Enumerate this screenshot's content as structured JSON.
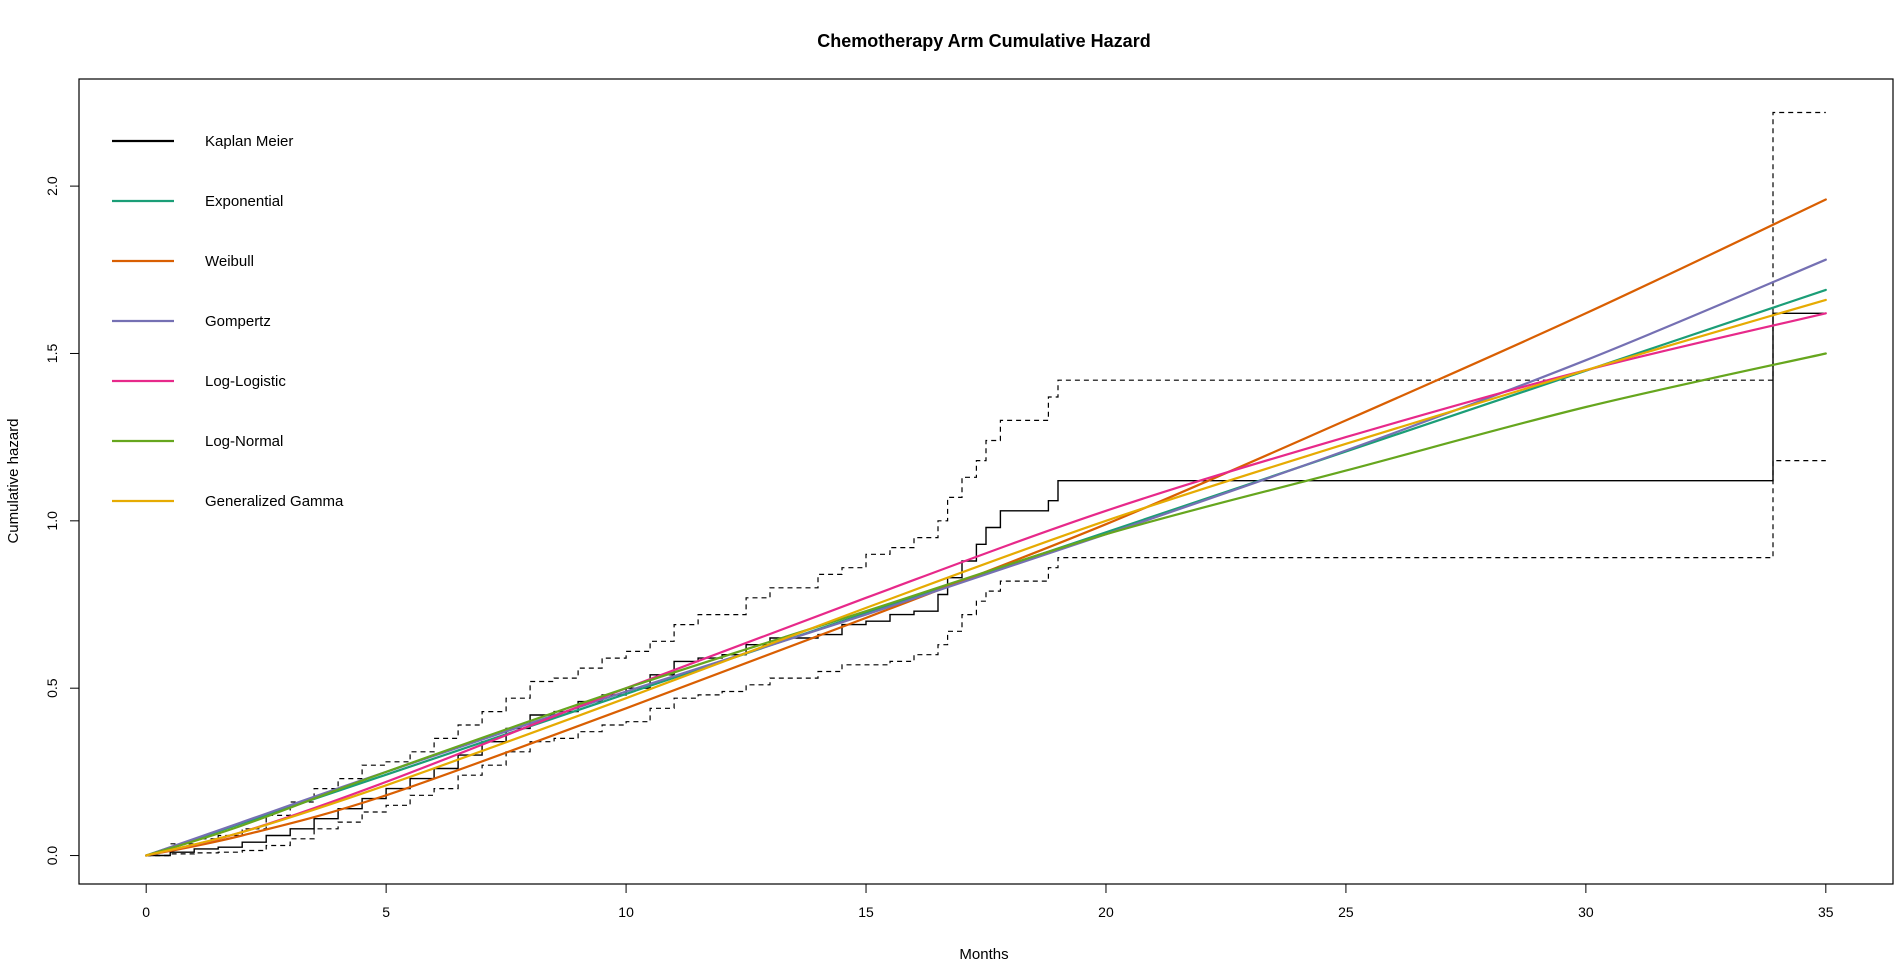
{
  "chart_data": {
    "type": "line",
    "title": "Chemotherapy Arm Cumulative Hazard",
    "xlabel": "Months",
    "ylabel": "Cumulative hazard",
    "xlim": [
      -1.4,
      36.4
    ],
    "ylim": [
      -0.085,
      2.32
    ],
    "xticks": [
      0,
      5,
      10,
      15,
      20,
      25,
      30,
      35
    ],
    "xtick_labels": [
      "0",
      "5",
      "10",
      "15",
      "20",
      "25",
      "30",
      "35"
    ],
    "yticks": [
      0.0,
      0.5,
      1.0,
      1.5,
      2.0
    ],
    "ytick_labels": [
      "0.0",
      "0.5",
      "1.0",
      "1.5",
      "2.0"
    ],
    "grid": false,
    "legend_position": "top-left",
    "legend": [
      {
        "label": "Kaplan Meier",
        "color": "#000000"
      },
      {
        "label": "Exponential",
        "color": "#1B9E77"
      },
      {
        "label": "Weibull",
        "color": "#D95F02"
      },
      {
        "label": "Gompertz",
        "color": "#7570B3"
      },
      {
        "label": "Log-Logistic",
        "color": "#E7298A"
      },
      {
        "label": "Log-Normal",
        "color": "#66A61E"
      },
      {
        "label": "Generalized Gamma",
        "color": "#E6AB02"
      }
    ],
    "kaplan_meier": {
      "estimate": [
        [
          0,
          0
        ],
        [
          0.5,
          0.01
        ],
        [
          1,
          0.02
        ],
        [
          1.5,
          0.025
        ],
        [
          2,
          0.04
        ],
        [
          2.5,
          0.06
        ],
        [
          3,
          0.08
        ],
        [
          3.5,
          0.11
        ],
        [
          4,
          0.14
        ],
        [
          4.5,
          0.17
        ],
        [
          5,
          0.2
        ],
        [
          5.5,
          0.23
        ],
        [
          6,
          0.26
        ],
        [
          6.5,
          0.3
        ],
        [
          7,
          0.34
        ],
        [
          7.5,
          0.38
        ],
        [
          8,
          0.42
        ],
        [
          8.5,
          0.43
        ],
        [
          9,
          0.46
        ],
        [
          9.5,
          0.48
        ],
        [
          10,
          0.5
        ],
        [
          10.5,
          0.54
        ],
        [
          11,
          0.58
        ],
        [
          11.5,
          0.59
        ],
        [
          12,
          0.6
        ],
        [
          12.5,
          0.63
        ],
        [
          13,
          0.65
        ],
        [
          14,
          0.66
        ],
        [
          14.5,
          0.69
        ],
        [
          15,
          0.7
        ],
        [
          15.5,
          0.72
        ],
        [
          16,
          0.73
        ],
        [
          16.5,
          0.78
        ],
        [
          16.7,
          0.83
        ],
        [
          17,
          0.88
        ],
        [
          17.3,
          0.93
        ],
        [
          17.5,
          0.98
        ],
        [
          17.8,
          1.03
        ],
        [
          18,
          1.03
        ],
        [
          18.8,
          1.06
        ],
        [
          19,
          1.12
        ],
        [
          33.9,
          1.12
        ],
        [
          33.9,
          1.62
        ],
        [
          35,
          1.62
        ]
      ],
      "upper": [
        [
          0,
          0
        ],
        [
          0.5,
          0.035
        ],
        [
          1,
          0.05
        ],
        [
          1.5,
          0.06
        ],
        [
          2,
          0.08
        ],
        [
          2.5,
          0.12
        ],
        [
          3,
          0.16
        ],
        [
          3.5,
          0.2
        ],
        [
          4,
          0.23
        ],
        [
          4.5,
          0.27
        ],
        [
          5,
          0.28
        ],
        [
          5.5,
          0.31
        ],
        [
          6,
          0.35
        ],
        [
          6.5,
          0.39
        ],
        [
          7,
          0.43
        ],
        [
          7.5,
          0.47
        ],
        [
          8,
          0.52
        ],
        [
          8.5,
          0.53
        ],
        [
          9,
          0.56
        ],
        [
          9.5,
          0.59
        ],
        [
          10,
          0.61
        ],
        [
          10.5,
          0.64
        ],
        [
          11,
          0.69
        ],
        [
          11.5,
          0.72
        ],
        [
          12,
          0.72
        ],
        [
          12.5,
          0.77
        ],
        [
          13,
          0.8
        ],
        [
          14,
          0.84
        ],
        [
          14.5,
          0.86
        ],
        [
          15,
          0.9
        ],
        [
          15.5,
          0.92
        ],
        [
          16,
          0.95
        ],
        [
          16.5,
          1.0
        ],
        [
          16.7,
          1.07
        ],
        [
          17,
          1.13
        ],
        [
          17.3,
          1.18
        ],
        [
          17.5,
          1.24
        ],
        [
          17.8,
          1.3
        ],
        [
          18,
          1.3
        ],
        [
          18.8,
          1.37
        ],
        [
          19,
          1.42
        ],
        [
          33.9,
          1.42
        ],
        [
          33.9,
          2.22
        ],
        [
          35,
          2.22
        ]
      ],
      "lower": [
        [
          0,
          0
        ],
        [
          0.5,
          0.005
        ],
        [
          1,
          0.008
        ],
        [
          1.5,
          0.01
        ],
        [
          2,
          0.015
        ],
        [
          2.5,
          0.03
        ],
        [
          3,
          0.05
        ],
        [
          3.5,
          0.08
        ],
        [
          4,
          0.1
        ],
        [
          4.5,
          0.13
        ],
        [
          5,
          0.15
        ],
        [
          5.5,
          0.18
        ],
        [
          6,
          0.2
        ],
        [
          6.5,
          0.24
        ],
        [
          7,
          0.27
        ],
        [
          7.5,
          0.31
        ],
        [
          8,
          0.34
        ],
        [
          8.5,
          0.35
        ],
        [
          9,
          0.37
        ],
        [
          9.5,
          0.39
        ],
        [
          10,
          0.4
        ],
        [
          10.5,
          0.44
        ],
        [
          11,
          0.47
        ],
        [
          11.5,
          0.48
        ],
        [
          12,
          0.49
        ],
        [
          12.5,
          0.51
        ],
        [
          13,
          0.53
        ],
        [
          14,
          0.55
        ],
        [
          14.5,
          0.57
        ],
        [
          15,
          0.57
        ],
        [
          15.5,
          0.58
        ],
        [
          16,
          0.6
        ],
        [
          16.5,
          0.63
        ],
        [
          16.7,
          0.67
        ],
        [
          17,
          0.72
        ],
        [
          17.3,
          0.76
        ],
        [
          17.5,
          0.79
        ],
        [
          17.8,
          0.82
        ],
        [
          18,
          0.82
        ],
        [
          18.8,
          0.86
        ],
        [
          19,
          0.89
        ],
        [
          33.9,
          0.89
        ],
        [
          33.9,
          1.18
        ],
        [
          35,
          1.18
        ]
      ]
    },
    "series": [
      {
        "name": "Exponential",
        "color": "#1B9E77",
        "x": [
          0,
          35
        ],
        "y": [
          0,
          1.69
        ]
      },
      {
        "name": "Weibull",
        "color": "#D95F02",
        "x": [
          0,
          2,
          5,
          10,
          15,
          20,
          25,
          30,
          35
        ],
        "y": [
          0,
          0.06,
          0.18,
          0.44,
          0.71,
          0.99,
          1.3,
          1.62,
          1.96
        ]
      },
      {
        "name": "Gompertz",
        "color": "#7570B3",
        "x": [
          0,
          2,
          5,
          10,
          15,
          20,
          25,
          30,
          35
        ],
        "y": [
          0,
          0.1,
          0.25,
          0.49,
          0.72,
          0.96,
          1.21,
          1.48,
          1.78
        ]
      },
      {
        "name": "Log-Logistic",
        "color": "#E7298A",
        "x": [
          0,
          2,
          5,
          10,
          15,
          20,
          25,
          30,
          35
        ],
        "y": [
          0,
          0.07,
          0.22,
          0.5,
          0.77,
          1.03,
          1.25,
          1.45,
          1.62
        ]
      },
      {
        "name": "Log-Normal",
        "color": "#66A61E",
        "x": [
          0,
          2,
          5,
          10,
          15,
          20,
          25,
          30,
          35
        ],
        "y": [
          0,
          0.09,
          0.25,
          0.5,
          0.73,
          0.96,
          1.15,
          1.34,
          1.5
        ]
      },
      {
        "name": "Generalized Gamma",
        "color": "#E6AB02",
        "x": [
          0,
          2,
          5,
          10,
          15,
          20,
          25,
          30,
          35
        ],
        "y": [
          0,
          0.07,
          0.21,
          0.47,
          0.74,
          1.0,
          1.23,
          1.45,
          1.66
        ]
      }
    ]
  }
}
